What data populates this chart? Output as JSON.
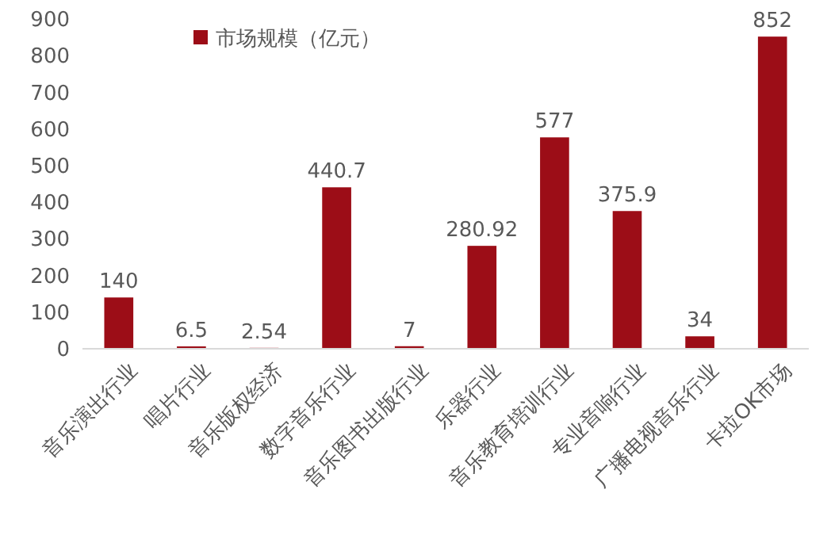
{
  "chart_data": {
    "type": "bar",
    "categories": [
      "音乐演出行业",
      "唱片行业",
      "音乐版权经济",
      "数字音乐行业",
      "音乐图书出版行业",
      "乐器行业",
      "音乐教育培训行业",
      "专业音响行业",
      "广播电视音乐行业",
      "卡拉OK市场"
    ],
    "series": [
      {
        "name": "市场规模（亿元）",
        "color": "#9c0d17",
        "values": [
          140,
          6.5,
          2.54,
          440.7,
          7,
          280.92,
          577,
          375.9,
          34,
          852
        ]
      }
    ],
    "ylim": [
      0,
      900
    ],
    "yticks": [
      0,
      100,
      200,
      300,
      400,
      500,
      600,
      700,
      800,
      900
    ],
    "data_labels": true,
    "legend": "top left"
  }
}
